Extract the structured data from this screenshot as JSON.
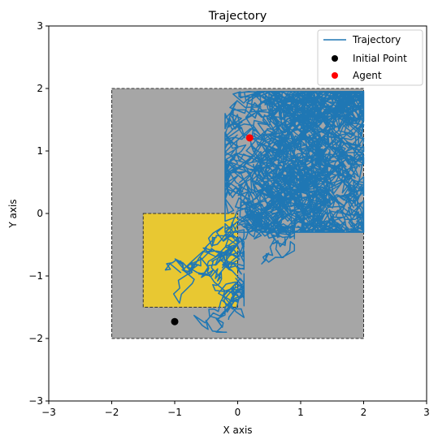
{
  "chart_data": {
    "type": "line",
    "title": "Trajectory",
    "xlabel": "X axis",
    "ylabel": "Y axis",
    "xlim": [
      -3,
      3
    ],
    "ylim": [
      -3,
      3
    ],
    "xticks": [
      -3,
      -2,
      -1,
      0,
      1,
      2,
      3
    ],
    "yticks": [
      -3,
      -2,
      -1,
      0,
      1,
      2,
      3
    ],
    "tick_labels_x": [
      "−3",
      "−2",
      "−1",
      "0",
      "1",
      "2",
      "3"
    ],
    "tick_labels_y": [
      "−3",
      "−2",
      "−1",
      "0",
      "1",
      "2",
      "3"
    ],
    "grid": false,
    "legend": {
      "placement": "top-right",
      "entries": [
        "Trajectory",
        "Initial Point",
        "Agent"
      ]
    },
    "regions": [
      {
        "kind": "outer-box",
        "x": [
          -2,
          2
        ],
        "y": [
          -2,
          2
        ],
        "color": "#a6a6a6"
      },
      {
        "kind": "target-box",
        "x": [
          -1.5,
          0
        ],
        "y": [
          -1.5,
          0
        ],
        "color": "#e8c832"
      }
    ],
    "series": [
      {
        "name": "Trajectory",
        "color": "#1f77b4",
        "clusters": [
          {
            "x_range": [
              -1.9,
              0.1
            ],
            "y_range": [
              -1.9,
              0.0
            ]
          },
          {
            "x_range": [
              -0.4,
              0.9
            ],
            "y_range": [
              -0.9,
              0.4
            ]
          },
          {
            "x_range": [
              -0.2,
              2.0
            ],
            "y_range": [
              -0.3,
              1.95
            ]
          }
        ]
      },
      {
        "name": "Initial Point",
        "color": "#000000",
        "x": [
          -1.0
        ],
        "y": [
          -1.73
        ]
      },
      {
        "name": "Agent",
        "color": "#ff0000",
        "x": [
          0.19
        ],
        "y": [
          1.21
        ]
      }
    ]
  }
}
